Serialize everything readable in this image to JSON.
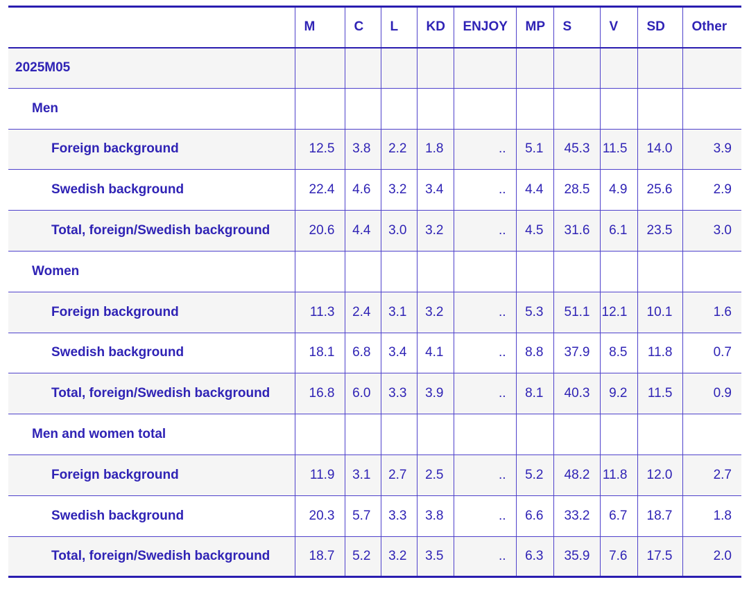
{
  "colors": {
    "text": "#2f23b5",
    "border_thin": "#4e41cb",
    "border_thick": "#2a1db0",
    "row_alt_background": "#f5f5f5",
    "row_background": "#ffffff"
  },
  "chart_data": {
    "type": "table",
    "columns": [
      "M",
      "C",
      "L",
      "KD",
      "ENJOY",
      "MP",
      "S",
      "V",
      "SD",
      "Other"
    ],
    "rows": [
      {
        "label": "2025M05",
        "indent": 1,
        "values": [
          "",
          "",
          "",
          "",
          "",
          "",
          "",
          "",
          "",
          ""
        ]
      },
      {
        "label": "Men",
        "indent": 2,
        "values": [
          "",
          "",
          "",
          "",
          "",
          "",
          "",
          "",
          "",
          ""
        ]
      },
      {
        "label": "Foreign background",
        "indent": 3,
        "values": [
          "12.5",
          "3.8",
          "2.2",
          "1.8",
          "..",
          "5.1",
          "45.3",
          "11.5",
          "14.0",
          "3.9"
        ]
      },
      {
        "label": "Swedish background",
        "indent": 3,
        "values": [
          "22.4",
          "4.6",
          "3.2",
          "3.4",
          "..",
          "4.4",
          "28.5",
          "4.9",
          "25.6",
          "2.9"
        ]
      },
      {
        "label": "Total, foreign/Swedish background",
        "indent": 3,
        "values": [
          "20.6",
          "4.4",
          "3.0",
          "3.2",
          "..",
          "4.5",
          "31.6",
          "6.1",
          "23.5",
          "3.0"
        ]
      },
      {
        "label": "Women",
        "indent": 2,
        "values": [
          "",
          "",
          "",
          "",
          "",
          "",
          "",
          "",
          "",
          ""
        ]
      },
      {
        "label": "Foreign background",
        "indent": 3,
        "values": [
          "11.3",
          "2.4",
          "3.1",
          "3.2",
          "..",
          "5.3",
          "51.1",
          "12.1",
          "10.1",
          "1.6"
        ]
      },
      {
        "label": "Swedish background",
        "indent": 3,
        "values": [
          "18.1",
          "6.8",
          "3.4",
          "4.1",
          "..",
          "8.8",
          "37.9",
          "8.5",
          "11.8",
          "0.7"
        ]
      },
      {
        "label": "Total, foreign/Swedish background",
        "indent": 3,
        "values": [
          "16.8",
          "6.0",
          "3.3",
          "3.9",
          "..",
          "8.1",
          "40.3",
          "9.2",
          "11.5",
          "0.9"
        ]
      },
      {
        "label": "Men and women total",
        "indent": 2,
        "values": [
          "",
          "",
          "",
          "",
          "",
          "",
          "",
          "",
          "",
          ""
        ]
      },
      {
        "label": "Foreign background",
        "indent": 3,
        "values": [
          "11.9",
          "3.1",
          "2.7",
          "2.5",
          "..",
          "5.2",
          "48.2",
          "11.8",
          "12.0",
          "2.7"
        ]
      },
      {
        "label": "Swedish background",
        "indent": 3,
        "values": [
          "20.3",
          "5.7",
          "3.3",
          "3.8",
          "..",
          "6.6",
          "33.2",
          "6.7",
          "18.7",
          "1.8"
        ]
      },
      {
        "label": "Total, foreign/Swedish background",
        "indent": 3,
        "values": [
          "18.7",
          "5.2",
          "3.2",
          "3.5",
          "..",
          "6.3",
          "35.9",
          "7.6",
          "17.5",
          "2.0"
        ]
      }
    ]
  }
}
